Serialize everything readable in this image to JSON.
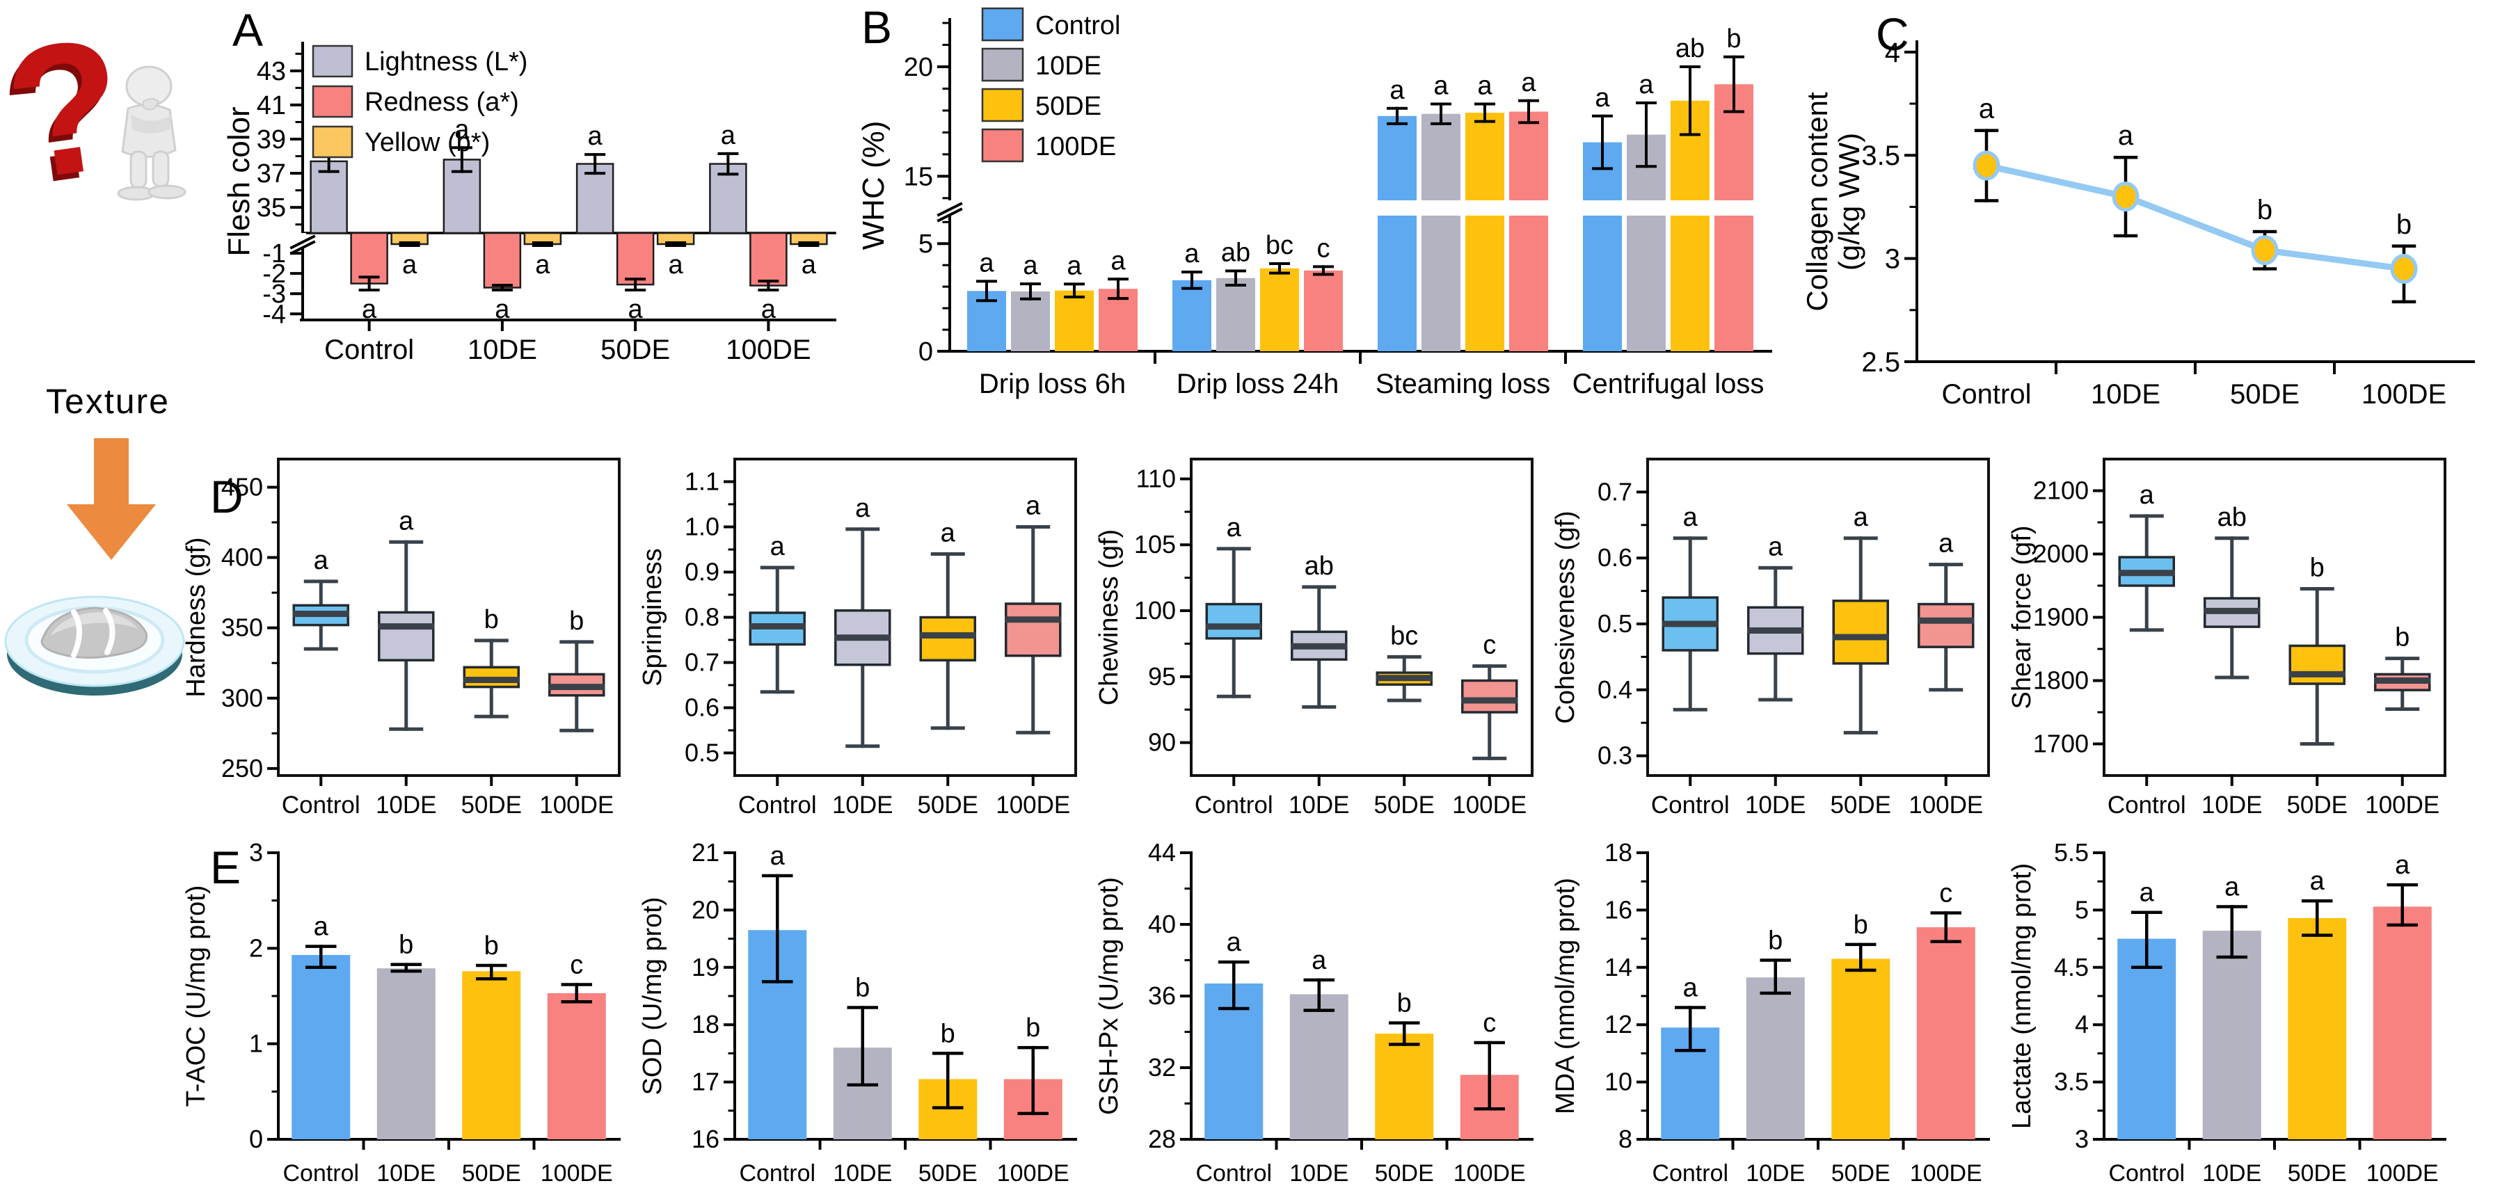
{
  "panels": {
    "A": "A",
    "B": "B",
    "C": "C",
    "D": "D",
    "E": "E"
  },
  "groups": [
    "Control",
    "10DE",
    "50DE",
    "100DE"
  ],
  "group_colors": [
    "#5ea9f0",
    "#b3b3c2",
    "#fec10d",
    "#f8827f"
  ],
  "box_colors": [
    "#6cc0ef",
    "#c5c7d8",
    "#fec10d",
    "#f29490"
  ],
  "illustration": {
    "texture_label": "Texture",
    "question_mark": "?"
  },
  "chart_data": [
    {
      "id": "A",
      "type": "grouped_bar_broken",
      "ylabel": "Flesh color",
      "categories": [
        "Control",
        "10DE",
        "50DE",
        "100DE"
      ],
      "series": [
        {
          "name": "Lightness (L*)",
          "color": "#bfbfd4",
          "values": [
            37.7,
            37.8,
            37.55,
            37.55
          ],
          "err": [
            0.6,
            0.7,
            0.55,
            0.6
          ],
          "sig": [
            "a",
            "a",
            "a",
            "a"
          ]
        },
        {
          "name": "Redness (a*)",
          "color": "#f8827f",
          "values": [
            -2.5,
            -2.7,
            -2.55,
            -2.6
          ],
          "err": [
            0.32,
            0.12,
            0.27,
            0.22
          ],
          "sig": [
            "a",
            "a",
            "a",
            "a"
          ]
        },
        {
          "name": "Yellow (b*)",
          "color": "#fbc75e",
          "values": [
            -0.55,
            -0.55,
            -0.55,
            -0.55
          ],
          "err": [
            0.07,
            0.07,
            0.07,
            0.07
          ],
          "sig": [
            "a",
            "a",
            "a",
            "a"
          ]
        }
      ],
      "axis": {
        "segments": [
          {
            "range": [
              -4.3,
              0
            ],
            "ticks": [
              -4,
              -3,
              -2,
              -1
            ],
            "minor": null
          },
          {
            "range": [
              33.5,
              44.5
            ],
            "ticks": [
              35,
              37,
              39,
              41,
              43
            ],
            "minor": 1
          }
        ]
      }
    },
    {
      "id": "B",
      "type": "grouped_bar_broken",
      "ylabel": "WHC (%)",
      "categories": [
        "Drip loss 6h",
        "Drip loss 24h",
        "Steaming loss",
        "Centrifugal loss"
      ],
      "series": [
        {
          "name": "Control",
          "color": "#5ea9f0",
          "values": [
            2.8,
            3.3,
            17.75,
            16.55
          ],
          "err": [
            0.45,
            0.38,
            0.35,
            1.2
          ],
          "sig": [
            "a",
            "a",
            "a",
            "a"
          ]
        },
        {
          "name": "10DE",
          "color": "#b3b3c2",
          "values": [
            2.78,
            3.4,
            17.85,
            16.9
          ],
          "err": [
            0.35,
            0.33,
            0.45,
            1.45
          ],
          "sig": [
            "a",
            "ab",
            "a",
            "a"
          ]
        },
        {
          "name": "50DE",
          "color": "#fec10d",
          "values": [
            2.82,
            3.85,
            17.9,
            18.45
          ],
          "err": [
            0.3,
            0.22,
            0.4,
            1.55
          ],
          "sig": [
            "a",
            "bc",
            "a",
            "ab"
          ]
        },
        {
          "name": "100DE",
          "color": "#f8827f",
          "values": [
            2.9,
            3.75,
            17.95,
            19.2
          ],
          "err": [
            0.45,
            0.18,
            0.5,
            1.25
          ],
          "sig": [
            "a",
            "c",
            "a",
            "b"
          ]
        }
      ],
      "axis": {
        "segments": [
          {
            "range": [
              0,
              6.3
            ],
            "ticks": [
              0,
              5
            ],
            "minor": 1
          },
          {
            "range": [
              13.9,
              22
            ],
            "ticks": [
              15,
              20
            ],
            "minor": 1
          }
        ]
      }
    },
    {
      "id": "C",
      "type": "line",
      "ylabel": "Collagen content",
      "ylabel2": "(g/kg WW)",
      "categories": [
        "Control",
        "10DE",
        "50DE",
        "100DE"
      ],
      "values": [
        3.45,
        3.3,
        3.04,
        2.95
      ],
      "err_lo": [
        3.28,
        3.11,
        2.95,
        2.79
      ],
      "err_hi": [
        3.62,
        3.49,
        3.13,
        3.06
      ],
      "sig": [
        "a",
        "a",
        "b",
        "b"
      ],
      "ylim": [
        2.5,
        4.05
      ],
      "ticks": [
        2.5,
        3,
        3.5,
        4
      ],
      "tick_labels": [
        "2.5",
        "3",
        "3.5",
        "4"
      ],
      "minor": 0.25,
      "line_color": "#93c9f3",
      "marker_color": "#fec10d"
    },
    {
      "id": "D1",
      "type": "box",
      "ylabel": "Hardness (gf)",
      "ylim": [
        245,
        470
      ],
      "ticks": [
        250,
        300,
        350,
        400,
        450
      ],
      "boxes": [
        {
          "lo": 335,
          "q1": 352,
          "med": 360,
          "q3": 366,
          "hi": 383,
          "sig": "a"
        },
        {
          "lo": 278,
          "q1": 327,
          "med": 351,
          "q3": 361,
          "hi": 411,
          "sig": "a"
        },
        {
          "lo": 287,
          "q1": 308,
          "med": 313,
          "q3": 322,
          "hi": 341,
          "sig": "b"
        },
        {
          "lo": 277,
          "q1": 302,
          "med": 308,
          "q3": 317,
          "hi": 340,
          "sig": "b"
        }
      ]
    },
    {
      "id": "D2",
      "type": "box",
      "ylabel": "Springiness",
      "ylim": [
        0.45,
        1.15
      ],
      "ticks": [
        0.5,
        0.6,
        0.7,
        0.8,
        0.9,
        1.0,
        1.1
      ],
      "tick_labels": [
        "0.5",
        "0.6",
        "0.7",
        "0.8",
        "0.9",
        "1.0",
        "1.1"
      ],
      "boxes": [
        {
          "lo": 0.635,
          "q1": 0.74,
          "med": 0.78,
          "q3": 0.81,
          "hi": 0.91,
          "sig": "a"
        },
        {
          "lo": 0.515,
          "q1": 0.695,
          "med": 0.755,
          "q3": 0.815,
          "hi": 0.995,
          "sig": "a"
        },
        {
          "lo": 0.555,
          "q1": 0.705,
          "med": 0.76,
          "q3": 0.8,
          "hi": 0.94,
          "sig": "a"
        },
        {
          "lo": 0.545,
          "q1": 0.715,
          "med": 0.795,
          "q3": 0.83,
          "hi": 1.0,
          "sig": "a"
        }
      ]
    },
    {
      "id": "D3",
      "type": "box",
      "ylabel": "Chewiness (gf)",
      "ylim": [
        87.5,
        111.5
      ],
      "ticks": [
        90,
        95,
        100,
        105,
        110
      ],
      "boxes": [
        {
          "lo": 93.5,
          "q1": 97.9,
          "med": 98.8,
          "q3": 100.5,
          "hi": 104.7,
          "sig": "a"
        },
        {
          "lo": 92.7,
          "q1": 96.3,
          "med": 97.3,
          "q3": 98.4,
          "hi": 101.8,
          "sig": "ab"
        },
        {
          "lo": 93.2,
          "q1": 94.4,
          "med": 94.9,
          "q3": 95.3,
          "hi": 96.5,
          "sig": "bc"
        },
        {
          "lo": 88.8,
          "q1": 92.3,
          "med": 93.2,
          "q3": 94.7,
          "hi": 95.8,
          "sig": "c"
        }
      ]
    },
    {
      "id": "D4",
      "type": "box",
      "ylabel": "Cohesiveness (gf)",
      "ylim": [
        0.27,
        0.75
      ],
      "ticks": [
        0.3,
        0.4,
        0.5,
        0.6,
        0.7
      ],
      "tick_labels": [
        "0.3",
        "0.4",
        "0.5",
        "0.6",
        "0.7"
      ],
      "boxes": [
        {
          "lo": 0.37,
          "q1": 0.46,
          "med": 0.5,
          "q3": 0.54,
          "hi": 0.63,
          "sig": "a"
        },
        {
          "lo": 0.385,
          "q1": 0.455,
          "med": 0.49,
          "q3": 0.525,
          "hi": 0.585,
          "sig": "a"
        },
        {
          "lo": 0.335,
          "q1": 0.44,
          "med": 0.48,
          "q3": 0.535,
          "hi": 0.63,
          "sig": "a"
        },
        {
          "lo": 0.4,
          "q1": 0.465,
          "med": 0.505,
          "q3": 0.53,
          "hi": 0.59,
          "sig": "a"
        }
      ]
    },
    {
      "id": "D5",
      "type": "box",
      "ylabel": "Shear force (gf)",
      "ylim": [
        1650,
        2150
      ],
      "ticks": [
        1700,
        1800,
        1900,
        2000,
        2100
      ],
      "boxes": [
        {
          "lo": 1880,
          "q1": 1950,
          "med": 1970,
          "q3": 1995,
          "hi": 2060,
          "sig": "a"
        },
        {
          "lo": 1805,
          "q1": 1885,
          "med": 1910,
          "q3": 1930,
          "hi": 2025,
          "sig": "ab"
        },
        {
          "lo": 1700,
          "q1": 1795,
          "med": 1810,
          "q3": 1855,
          "hi": 1945,
          "sig": "b"
        },
        {
          "lo": 1755,
          "q1": 1785,
          "med": 1800,
          "q3": 1810,
          "hi": 1835,
          "sig": "b"
        }
      ]
    },
    {
      "id": "E1",
      "type": "bar",
      "ylabel": "T-AOC (U/mg prot)",
      "ylim": [
        0,
        3
      ],
      "ticks": [
        0,
        1,
        2,
        3
      ],
      "values": [
        1.93,
        1.79,
        1.76,
        1.53
      ],
      "err_lo": [
        1.8,
        1.76,
        1.68,
        1.44
      ],
      "err_hi": [
        2.02,
        1.83,
        1.82,
        1.62
      ],
      "sig": [
        "a",
        "b",
        "b",
        "c"
      ]
    },
    {
      "id": "E2",
      "type": "bar",
      "ylabel": "SOD (U/mg prot)",
      "ylim": [
        16,
        21
      ],
      "ticks": [
        16,
        17,
        18,
        19,
        20,
        21
      ],
      "values": [
        19.65,
        17.6,
        17.05,
        17.05
      ],
      "err_lo": [
        18.75,
        16.95,
        16.55,
        16.45
      ],
      "err_hi": [
        20.6,
        18.3,
        17.5,
        17.6
      ],
      "sig": [
        "a",
        "b",
        "b",
        "b"
      ]
    },
    {
      "id": "E3",
      "type": "bar",
      "ylabel": "GSH-Px (U/mg prot)",
      "ylim": [
        28,
        44
      ],
      "ticks": [
        28,
        32,
        36,
        40,
        44
      ],
      "values": [
        36.7,
        36.1,
        33.9,
        31.6
      ],
      "err_lo": [
        35.3,
        35.2,
        33.3,
        29.7
      ],
      "err_hi": [
        37.9,
        36.9,
        34.5,
        33.4
      ],
      "sig": [
        "a",
        "a",
        "b",
        "c"
      ]
    },
    {
      "id": "E4",
      "type": "bar",
      "ylabel": "MDA (nmol/mg prot)",
      "ylim": [
        8,
        18
      ],
      "ticks": [
        8,
        10,
        12,
        14,
        16,
        18
      ],
      "values": [
        11.9,
        13.65,
        14.3,
        15.4
      ],
      "err_lo": [
        11.1,
        13.1,
        13.9,
        14.9
      ],
      "err_hi": [
        12.6,
        14.25,
        14.8,
        15.9
      ],
      "sig": [
        "a",
        "b",
        "b",
        "c"
      ]
    },
    {
      "id": "E5",
      "type": "bar",
      "ylabel": "Lactate (nmol/mg prot)",
      "ylim": [
        3,
        5.5
      ],
      "ticks": [
        3,
        3.5,
        4,
        4.5,
        5,
        5.5
      ],
      "tick_labels": [
        "3",
        "3.5",
        "4",
        "4.5",
        "5",
        "5.5"
      ],
      "values": [
        4.75,
        4.82,
        4.93,
        5.03
      ],
      "err_lo": [
        4.5,
        4.59,
        4.78,
        4.87
      ],
      "err_hi": [
        4.98,
        5.03,
        5.08,
        5.22
      ],
      "sig": [
        "a",
        "a",
        "a",
        "a"
      ]
    }
  ]
}
